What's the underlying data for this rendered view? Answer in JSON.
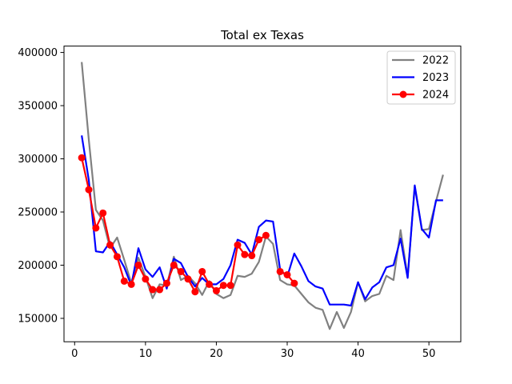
{
  "chart_data": {
    "type": "line",
    "title": "Total ex Texas",
    "xlabel": "",
    "ylabel": "",
    "xlim": [
      -1.5,
      54.5
    ],
    "ylim": [
      128000,
      406000
    ],
    "xticks": [
      0,
      10,
      20,
      30,
      40,
      50
    ],
    "yticks": [
      150000,
      200000,
      250000,
      300000,
      350000,
      400000
    ],
    "grid": false,
    "legend_position": "top-right",
    "series": [
      {
        "name": "2022",
        "color": "#808080",
        "marker": false,
        "x": [
          1,
          2,
          3,
          4,
          5,
          6,
          7,
          8,
          9,
          10,
          11,
          12,
          13,
          14,
          15,
          16,
          17,
          18,
          19,
          20,
          21,
          22,
          23,
          24,
          25,
          26,
          27,
          28,
          29,
          30,
          31,
          32,
          33,
          34,
          35,
          36,
          37,
          38,
          39,
          40,
          41,
          42,
          43,
          44,
          45,
          46,
          47,
          48,
          49,
          50,
          51,
          52
        ],
        "y": [
          391000,
          318000,
          252000,
          242000,
          216000,
          226000,
          205000,
          183000,
          207000,
          189000,
          169000,
          182000,
          181000,
          208000,
          186000,
          190000,
          183000,
          172000,
          185000,
          173000,
          169000,
          172000,
          190000,
          189000,
          192000,
          203000,
          227000,
          220000,
          186000,
          182000,
          181000,
          173000,
          165000,
          160000,
          158000,
          140000,
          156000,
          141000,
          156000,
          184000,
          166000,
          171000,
          173000,
          190000,
          186000,
          233000,
          189000,
          274000,
          233000,
          234000,
          260000,
          285000
        ]
      },
      {
        "name": "2023",
        "color": "#0000ff",
        "marker": false,
        "x": [
          1,
          2,
          3,
          4,
          5,
          6,
          7,
          8,
          9,
          10,
          11,
          12,
          13,
          14,
          15,
          16,
          17,
          18,
          19,
          20,
          21,
          22,
          23,
          24,
          25,
          26,
          27,
          28,
          29,
          30,
          31,
          32,
          33,
          34,
          35,
          36,
          37,
          38,
          39,
          40,
          41,
          42,
          43,
          44,
          45,
          46,
          47,
          48,
          49,
          50,
          51,
          52
        ],
        "y": [
          322000,
          280000,
          213000,
          212000,
          222000,
          210000,
          198000,
          181000,
          216000,
          196000,
          189000,
          198000,
          178000,
          206000,
          202000,
          189000,
          180000,
          188000,
          182000,
          182000,
          187000,
          200000,
          224000,
          221000,
          210000,
          236000,
          242000,
          241000,
          196000,
          189000,
          211000,
          199000,
          185000,
          180000,
          178000,
          163000,
          163000,
          163000,
          162000,
          184000,
          168000,
          179000,
          184000,
          198000,
          200000,
          225000,
          188000,
          275000,
          234000,
          226000,
          261000,
          261000
        ]
      },
      {
        "name": "2024",
        "color": "#ff0000",
        "marker": true,
        "x": [
          1,
          2,
          3,
          4,
          5,
          6,
          7,
          8,
          9,
          10,
          11,
          12,
          13,
          14,
          15,
          16,
          17,
          18,
          19,
          20,
          21,
          22,
          23,
          24,
          25,
          26,
          27,
          28,
          29,
          30,
          31
        ],
        "y": [
          301000,
          271000,
          235000,
          249000,
          219000,
          208000,
          185000,
          182000,
          200000,
          187000,
          177000,
          177000,
          183000,
          200000,
          194000,
          187000,
          175000,
          194000,
          182000,
          176000,
          181000,
          181000,
          219000,
          210000,
          209000,
          224000,
          228000,
          null,
          194000,
          191000,
          183000
        ]
      }
    ]
  }
}
